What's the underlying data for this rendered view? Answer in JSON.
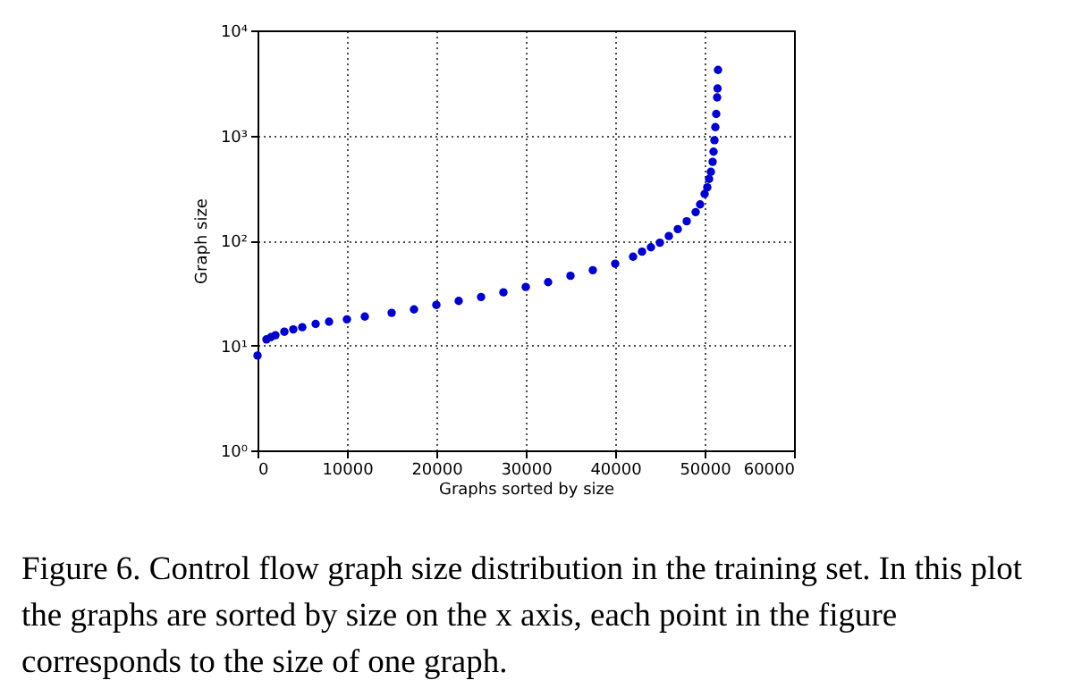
{
  "chart_data": {
    "type": "scatter",
    "xlabel": "Graphs sorted by size",
    "ylabel": "Graph size",
    "x": [
      0,
      1000,
      1500,
      2000,
      3000,
      4000,
      5000,
      6500,
      8000,
      10000,
      12000,
      15000,
      17500,
      20000,
      22500,
      25000,
      27500,
      30000,
      32500,
      35000,
      37500,
      40000,
      42000,
      43000,
      44000,
      45000,
      46000,
      47000,
      48000,
      49000,
      49500,
      50000,
      50300,
      50500,
      50700,
      50900,
      51000,
      51100,
      51200,
      51300,
      51400,
      51450,
      51500
    ],
    "series": [
      {
        "color": "#0000cc",
        "values": [
          8,
          11.4,
          12,
          12.5,
          13.5,
          14.2,
          14.9,
          16,
          16.8,
          17.7,
          18.8,
          20.4,
          22,
          24.3,
          26.5,
          28.9,
          32,
          36,
          40,
          46,
          52,
          60,
          70,
          78,
          86,
          95,
          110,
          128,
          152,
          186,
          220,
          277,
          320,
          385,
          450,
          560,
          700,
          900,
          1200,
          1600,
          2300,
          2800,
          4200
        ]
      }
    ],
    "xlim": [
      0,
      60000
    ],
    "xticks": [
      0,
      10000,
      20000,
      30000,
      40000,
      50000,
      60000
    ],
    "ylim": [
      1,
      10000
    ],
    "yticks": [
      {
        "value": 1,
        "label": "10⁰"
      },
      {
        "value": 10,
        "label": "10¹"
      },
      {
        "value": 100,
        "label": "10²"
      },
      {
        "value": 1000,
        "label": "10³"
      },
      {
        "value": 10000,
        "label": "10⁴"
      }
    ],
    "log": "y",
    "grid": true,
    "marker": "circle",
    "annotations": [
      "Figure 6. Control flow graph size distribution in the training set. In this plot the graphs are sorted by size on the x axis, each point in the figure corresponds to the size of one graph."
    ]
  }
}
